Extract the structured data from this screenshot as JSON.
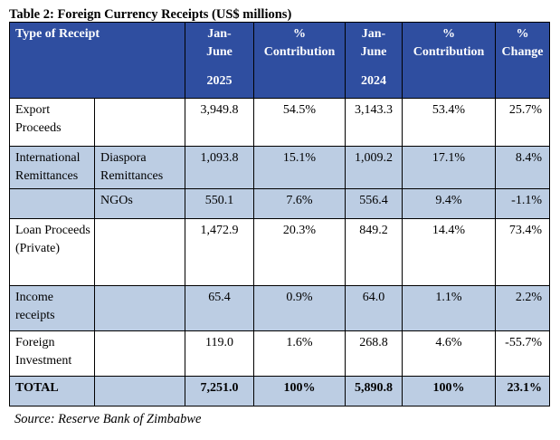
{
  "title": "Table 2: Foreign Currency Receipts (US$ millions)",
  "header": {
    "type": "Type of Receipt",
    "c1": [
      "Jan-",
      "June",
      "2025"
    ],
    "c2": [
      "%",
      "Contribution"
    ],
    "c3": [
      "Jan-",
      "June",
      "2024"
    ],
    "c4": [
      "%",
      "Contribution"
    ],
    "c5": [
      "%",
      "Change"
    ]
  },
  "rows": {
    "export": {
      "label": "Export Proceeds",
      "v2025": "3,949.8",
      "c2025": "54.5%",
      "v2024": "3,143.3",
      "c2024": "53.4%",
      "change": "25.7%"
    },
    "remit": {
      "label": "International Remittances",
      "diaspora": {
        "label": "Diaspora Remittances",
        "v2025": "1,093.8",
        "c2025": "15.1%",
        "v2024": "1,009.2",
        "c2024": "17.1%",
        "change": "8.4%"
      },
      "ngos": {
        "label": "NGOs",
        "v2025": "550.1",
        "c2025": "7.6%",
        "v2024": "556.4",
        "c2024": "9.4%",
        "change": "-1.1%"
      }
    },
    "loan": {
      "label": "Loan Proceeds (Private)",
      "v2025": "1,472.9",
      "c2025": "20.3%",
      "v2024": "849.2",
      "c2024": "14.4%",
      "change": "73.4%"
    },
    "income": {
      "label": "Income receipts",
      "v2025": "65.4",
      "c2025": "0.9%",
      "v2024": "64.0",
      "c2024": "1.1%",
      "change": "2.2%"
    },
    "foreign": {
      "label": "Foreign Investment",
      "v2025": "119.0",
      "c2025": "1.6%",
      "v2024": "268.8",
      "c2024": "4.6%",
      "change": "-55.7%"
    },
    "total": {
      "label": "TOTAL",
      "v2025": "7,251.0",
      "c2025": "100%",
      "v2024": "5,890.8",
      "c2024": "100%",
      "change": "23.1%"
    }
  },
  "source": "Source: Reserve Bank of Zimbabwe"
}
